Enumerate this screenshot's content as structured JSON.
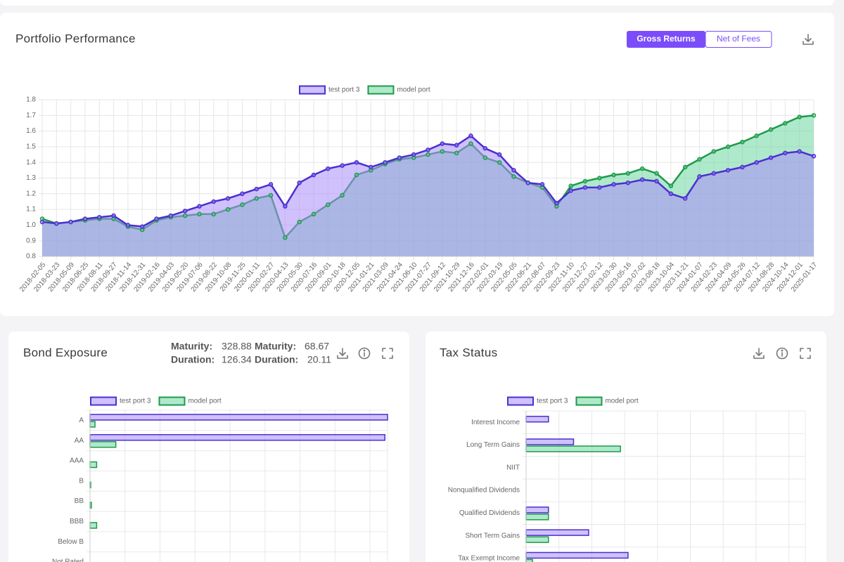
{
  "header": {
    "toggle": [
      "Gross Returns",
      "Net of Fees"
    ]
  },
  "bond_stats": [
    {
      "label": "Maturity:",
      "value": 328.88
    },
    {
      "label": "Maturity:",
      "value": 68.67
    },
    {
      "label": "Duration:",
      "value": 126.34
    },
    {
      "label": "Duration:",
      "value": 20.11
    }
  ],
  "chart_data": [
    {
      "type": "line",
      "title": "Portfolio Performance",
      "area": true,
      "grid": true,
      "categories": [
        "2018-02-05",
        "2018-03-23",
        "2018-05-09",
        "2018-06-25",
        "2018-08-11",
        "2018-09-27",
        "2018-11-14",
        "2018-12-31",
        "2019-02-16",
        "2019-04-03",
        "2019-05-20",
        "2019-07-06",
        "2019-08-22",
        "2019-10-08",
        "2019-11-25",
        "2020-01-11",
        "2020-02-27",
        "2020-04-13",
        "2020-05-30",
        "2020-07-16",
        "2020-09-01",
        "2020-10-18",
        "2020-12-05",
        "2021-01-21",
        "2021-03-09",
        "2021-04-24",
        "2021-06-10",
        "2021-07-27",
        "2021-09-12",
        "2021-10-29",
        "2021-12-16",
        "2022-02-01",
        "2022-03-19",
        "2022-05-05",
        "2022-06-21",
        "2022-08-07",
        "2022-09-23",
        "2022-11-10",
        "2022-12-27",
        "2023-02-12",
        "2023-03-30",
        "2023-05-16",
        "2023-07-02",
        "2023-08-18",
        "2023-10-04",
        "2023-11-21",
        "2024-01-07",
        "2024-02-23",
        "2024-04-09",
        "2024-05-26",
        "2024-07-12",
        "2024-08-28",
        "2024-10-14",
        "2024-12-01",
        "2025-01-17"
      ],
      "series": [
        {
          "name": "test port 3",
          "color": "#4a2fd0",
          "fill": "rgba(170,140,250,0.55)",
          "values": [
            1.02,
            1.01,
            1.02,
            1.04,
            1.05,
            1.06,
            1.0,
            0.99,
            1.04,
            1.06,
            1.09,
            1.12,
            1.15,
            1.17,
            1.2,
            1.23,
            1.26,
            1.12,
            1.27,
            1.32,
            1.36,
            1.38,
            1.4,
            1.37,
            1.4,
            1.43,
            1.45,
            1.48,
            1.52,
            1.51,
            1.57,
            1.49,
            1.45,
            1.35,
            1.27,
            1.26,
            1.14,
            1.22,
            1.24,
            1.24,
            1.26,
            1.27,
            1.29,
            1.28,
            1.2,
            1.17,
            1.31,
            1.33,
            1.35,
            1.37,
            1.4,
            1.43,
            1.46,
            1.47,
            1.44
          ]
        },
        {
          "name": "model port",
          "color": "#1e9a4a",
          "fill": "rgba(110,215,160,0.55)",
          "values": [
            1.04,
            1.01,
            1.02,
            1.03,
            1.04,
            1.04,
            0.99,
            0.97,
            1.03,
            1.05,
            1.06,
            1.07,
            1.07,
            1.1,
            1.13,
            1.17,
            1.19,
            0.92,
            1.02,
            1.07,
            1.13,
            1.19,
            1.32,
            1.35,
            1.39,
            1.42,
            1.43,
            1.45,
            1.47,
            1.46,
            1.52,
            1.43,
            1.4,
            1.31,
            1.27,
            1.24,
            1.12,
            1.25,
            1.28,
            1.3,
            1.32,
            1.33,
            1.36,
            1.33,
            1.25,
            1.37,
            1.42,
            1.47,
            1.5,
            1.53,
            1.57,
            1.61,
            1.65,
            1.69,
            1.7
          ]
        }
      ],
      "ylim": [
        0.8,
        1.8
      ],
      "yticks": [
        0.8,
        0.9,
        {
          "value": 1,
          "label": "1.0"
        },
        1.1,
        1.2,
        1.3,
        1.4,
        1.5,
        1.6,
        1.7,
        1.8
      ]
    },
    {
      "type": "hbar",
      "title": "Bond Exposure",
      "categories": [
        "A",
        "AA",
        "AAA",
        "B",
        "BB",
        "BBB",
        "Below B",
        "Not Rated"
      ],
      "series": [
        {
          "name": "test port 3",
          "color": "#4a2fd0",
          "fill": "rgba(170,140,250,0.55)",
          "values": [
            45,
            44.6,
            0,
            0,
            0,
            0,
            0,
            0
          ]
        },
        {
          "name": "model port",
          "color": "#1e9a4a",
          "fill": "rgba(110,215,160,0.55)",
          "values": [
            0.75,
            3.9,
            1,
            0.1,
            0.2,
            1,
            0,
            0
          ]
        }
      ],
      "xlim": [
        0,
        45
      ]
    },
    {
      "type": "hbar",
      "title": "Tax Status",
      "categories": [
        "Interest Income",
        "Long Term Gains",
        "NIIT",
        "Nonqualified Dividends",
        "Qualified Dividends",
        "Short Term Gains",
        "Tax Exempt Income"
      ],
      "series": [
        {
          "name": "test port 3",
          "color": "#4a2fd0",
          "fill": "rgba(170,140,250,0.55)",
          "values": [
            8,
            17,
            0,
            0,
            8,
            22.4,
            36.5
          ]
        },
        {
          "name": "model port",
          "color": "#1e9a4a",
          "fill": "rgba(110,215,160,0.55)",
          "values": [
            0,
            33.8,
            0,
            0,
            8,
            8,
            2.3
          ]
        }
      ],
      "xlim": [
        0,
        100
      ]
    }
  ]
}
